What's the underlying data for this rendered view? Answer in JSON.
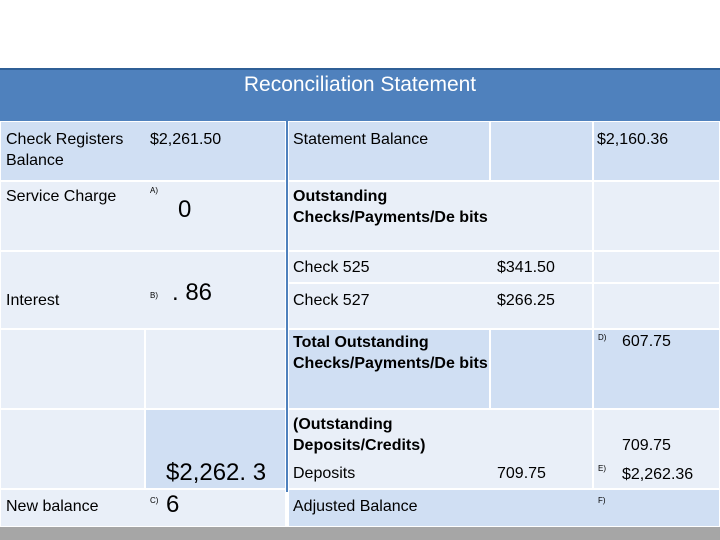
{
  "title": "Reconciliation Statement",
  "left": {
    "check_registers_balance_label": "Check Registers Balance",
    "check_registers_balance_value": "$2,261.50",
    "service_charge_label": "Service Charge",
    "service_charge_marker": "A)",
    "service_charge_value": "0",
    "interest_label": "Interest",
    "interest_marker": "B)",
    "interest_value": ". 86",
    "subtotal_value": "$2,262. 3",
    "new_balance_label": "New balance",
    "new_balance_marker": "C)",
    "new_balance_value": "6"
  },
  "right": {
    "statement_balance_label": "Statement Balance",
    "statement_balance_value": "$2,160.36",
    "outstanding_heading": "Outstanding Checks/Payments/De bits",
    "checks": [
      {
        "label": "Check 525",
        "amount": "$341.50"
      },
      {
        "label": "Check 527",
        "amount": "$266.25"
      }
    ],
    "total_outstanding_label": "Total Outstanding Checks/Payments/De bits",
    "total_outstanding_marker": "D)",
    "total_outstanding_value": "607.75",
    "outstanding_deposits_label": "(Outstanding Deposits/Credits)",
    "outstanding_deposits_total": "709.75",
    "deposits_label": "Deposits",
    "deposits_amount": "709.75",
    "deposits_marker": "E)",
    "deposits_result": "$2,262.36",
    "adjusted_balance_label": "Adjusted Balance",
    "adjusted_balance_marker": "F)"
  }
}
